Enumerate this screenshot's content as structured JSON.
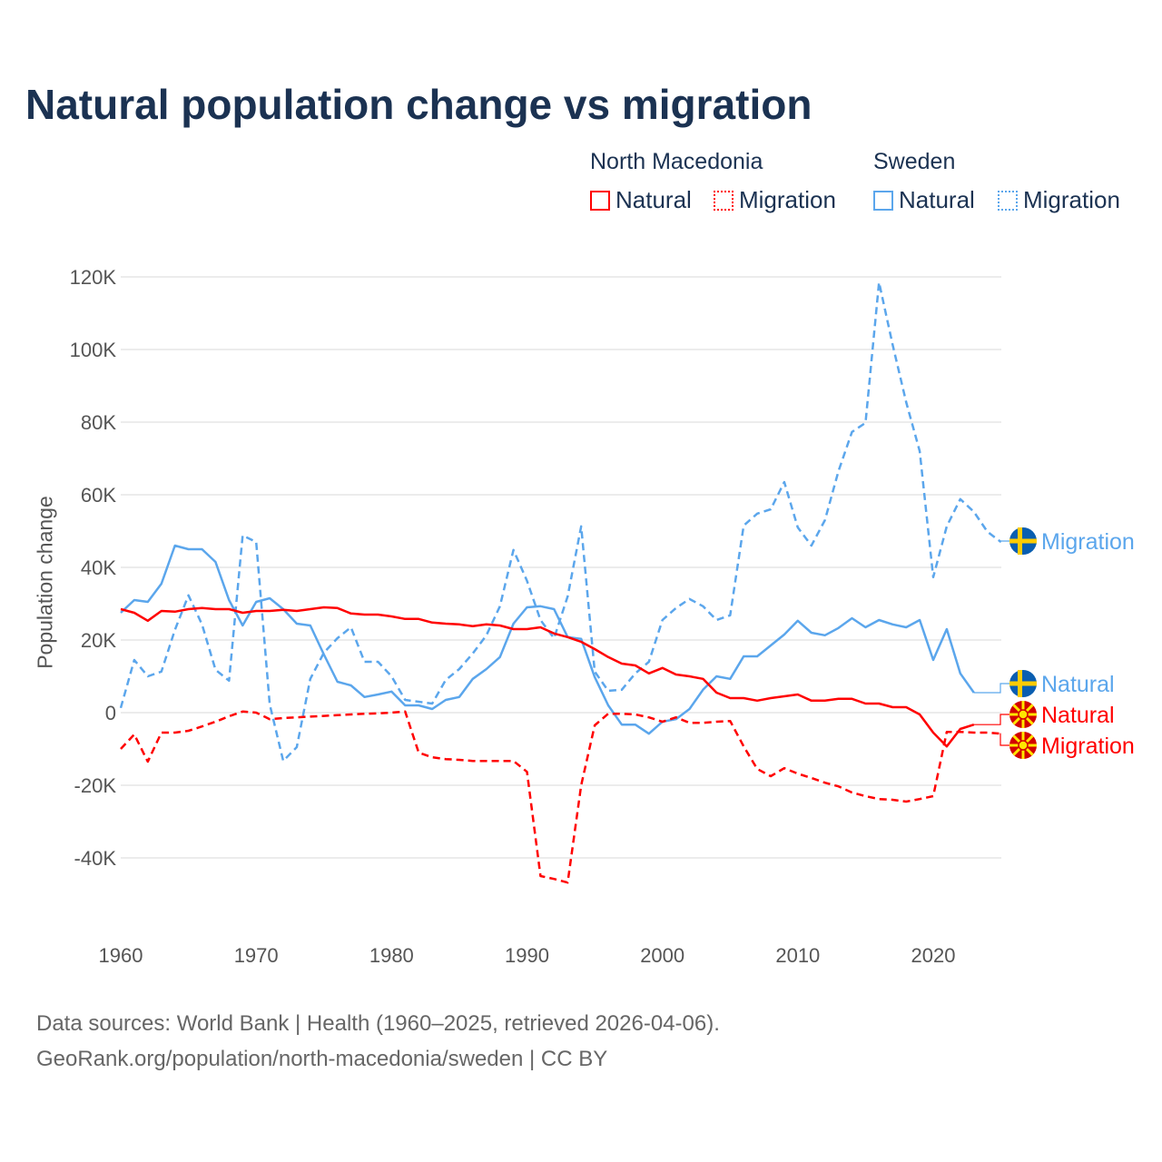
{
  "title": "Natural population change vs migration",
  "legend": {
    "groups": [
      {
        "name": "North Macedonia",
        "items": [
          {
            "label": "Natural",
            "style": "solid",
            "color": "#ff0000"
          },
          {
            "label": "Migration",
            "style": "dotted",
            "color": "#ff0000"
          }
        ]
      },
      {
        "name": "Sweden",
        "items": [
          {
            "label": "Natural",
            "style": "solid",
            "color": "#5ba6ec"
          },
          {
            "label": "Migration",
            "style": "dotted",
            "color": "#5ba6ec"
          }
        ]
      }
    ]
  },
  "source": [
    "Data sources: World Bank | Health (1960–2025, retrieved 2026-04-06).",
    "GeoRank.org/population/north-macedonia/sweden | CC BY"
  ],
  "chart_data": {
    "type": "line",
    "title": "Natural population change vs migration",
    "xlabel": "",
    "ylabel": "Population change",
    "xlim": [
      1960,
      2025
    ],
    "ylim": [
      -55000,
      120000
    ],
    "xticks": [
      1960,
      1970,
      1980,
      1990,
      2000,
      2010,
      2020
    ],
    "xtick_labels": [
      "1960",
      "1970",
      "1980",
      "1990",
      "2000",
      "2010",
      "2020"
    ],
    "yticks": [
      -40000,
      -20000,
      0,
      20000,
      40000,
      60000,
      80000,
      100000,
      120000
    ],
    "ytick_labels": [
      "-40K",
      "-20K",
      "0",
      "20K",
      "40K",
      "60K",
      "80K",
      "100K",
      "120K"
    ],
    "grid": true,
    "legend_position": "top-right",
    "series": [
      {
        "name": "Sweden Migration",
        "country": "Sweden",
        "kind": "Migration",
        "end_label": "Migration",
        "color": "#5ba6ec",
        "dashed": true,
        "start": 1960,
        "values": [
          1300,
          14500,
          10000,
          11300,
          22800,
          32300,
          24300,
          11800,
          8800,
          48800,
          47000,
          2300,
          -13300,
          -9500,
          9300,
          16500,
          20500,
          23500,
          14000,
          14000,
          10000,
          3500,
          3000,
          2500,
          9000,
          12000,
          16300,
          21300,
          29300,
          44800,
          36300,
          25500,
          20500,
          32000,
          51300,
          11300,
          6000,
          6300,
          10800,
          14000,
          25500,
          28800,
          31300,
          29300,
          25500,
          26800,
          51500,
          54800,
          56000,
          63500,
          51000,
          46000,
          53000,
          66500,
          77300,
          79800,
          118500,
          101300,
          85500,
          72000,
          37300,
          51300,
          58800,
          55300,
          49800,
          47000
        ]
      },
      {
        "name": "Sweden Natural",
        "country": "Sweden",
        "kind": "Natural",
        "end_label": "Natural",
        "color": "#5ba6ec",
        "dashed": false,
        "start": 1960,
        "values": [
          27500,
          31000,
          30500,
          35500,
          46000,
          45000,
          45000,
          41500,
          31000,
          24000,
          30500,
          31500,
          28500,
          24500,
          24000,
          16000,
          8500,
          7500,
          4300,
          5000,
          5800,
          2000,
          2000,
          1000,
          3500,
          4300,
          9300,
          12000,
          15300,
          24500,
          29000,
          29300,
          28500,
          20800,
          20300,
          9800,
          2000,
          -3300,
          -3300,
          -5800,
          -2500,
          -1800,
          1000,
          6300,
          10000,
          9300,
          15500,
          15500,
          18500,
          21500,
          25300,
          22000,
          21300,
          23300,
          26000,
          23500,
          25500,
          24300,
          23500,
          25500,
          14500,
          23000,
          10800,
          5500
        ]
      },
      {
        "name": "North Macedonia Natural",
        "country": "North Macedonia",
        "kind": "Natural",
        "end_label": "Natural",
        "color": "#ff0000",
        "dashed": false,
        "start": 1960,
        "values": [
          28500,
          27500,
          25300,
          28000,
          27800,
          28500,
          28800,
          28500,
          28500,
          27500,
          28000,
          28000,
          28300,
          28000,
          28500,
          29000,
          28800,
          27300,
          27000,
          27000,
          26500,
          25800,
          25800,
          24800,
          24500,
          24300,
          23800,
          24300,
          24000,
          23000,
          23000,
          23500,
          21800,
          20800,
          19500,
          17500,
          15300,
          13500,
          13000,
          10800,
          12300,
          10500,
          10000,
          9300,
          5500,
          4000,
          4000,
          3300,
          4000,
          4500,
          5000,
          3300,
          3300,
          3800,
          3800,
          2500,
          2500,
          1500,
          1500,
          -500,
          -5500,
          -9300,
          -4500,
          -3300
        ]
      },
      {
        "name": "North Macedonia Migration",
        "country": "North Macedonia",
        "kind": "Migration",
        "end_label": "Migration",
        "color": "#ff0000",
        "dashed": true,
        "start": 1960,
        "values": [
          -10000,
          -6000,
          -13500,
          -5500,
          -5500,
          -5000,
          -3800,
          -2500,
          -1000,
          300,
          0,
          -1800,
          -1500,
          -1300,
          -1100,
          -900,
          -700,
          -500,
          -300,
          -200,
          0,
          300,
          -11000,
          -12300,
          -12800,
          -13000,
          -13300,
          -13300,
          -13300,
          -13300,
          -16300,
          -45000,
          -45800,
          -46800,
          -20000,
          -3500,
          -300,
          -300,
          -500,
          -1300,
          -2500,
          -1300,
          -2800,
          -2800,
          -2500,
          -2300,
          -9300,
          -15500,
          -17500,
          -15300,
          -16800,
          -18000,
          -19300,
          -20300,
          -22000,
          -23000,
          -23800,
          -24000,
          -24500,
          -23800,
          -23000,
          -5300,
          -5300,
          -5500,
          -5500,
          -5800
        ]
      }
    ]
  }
}
